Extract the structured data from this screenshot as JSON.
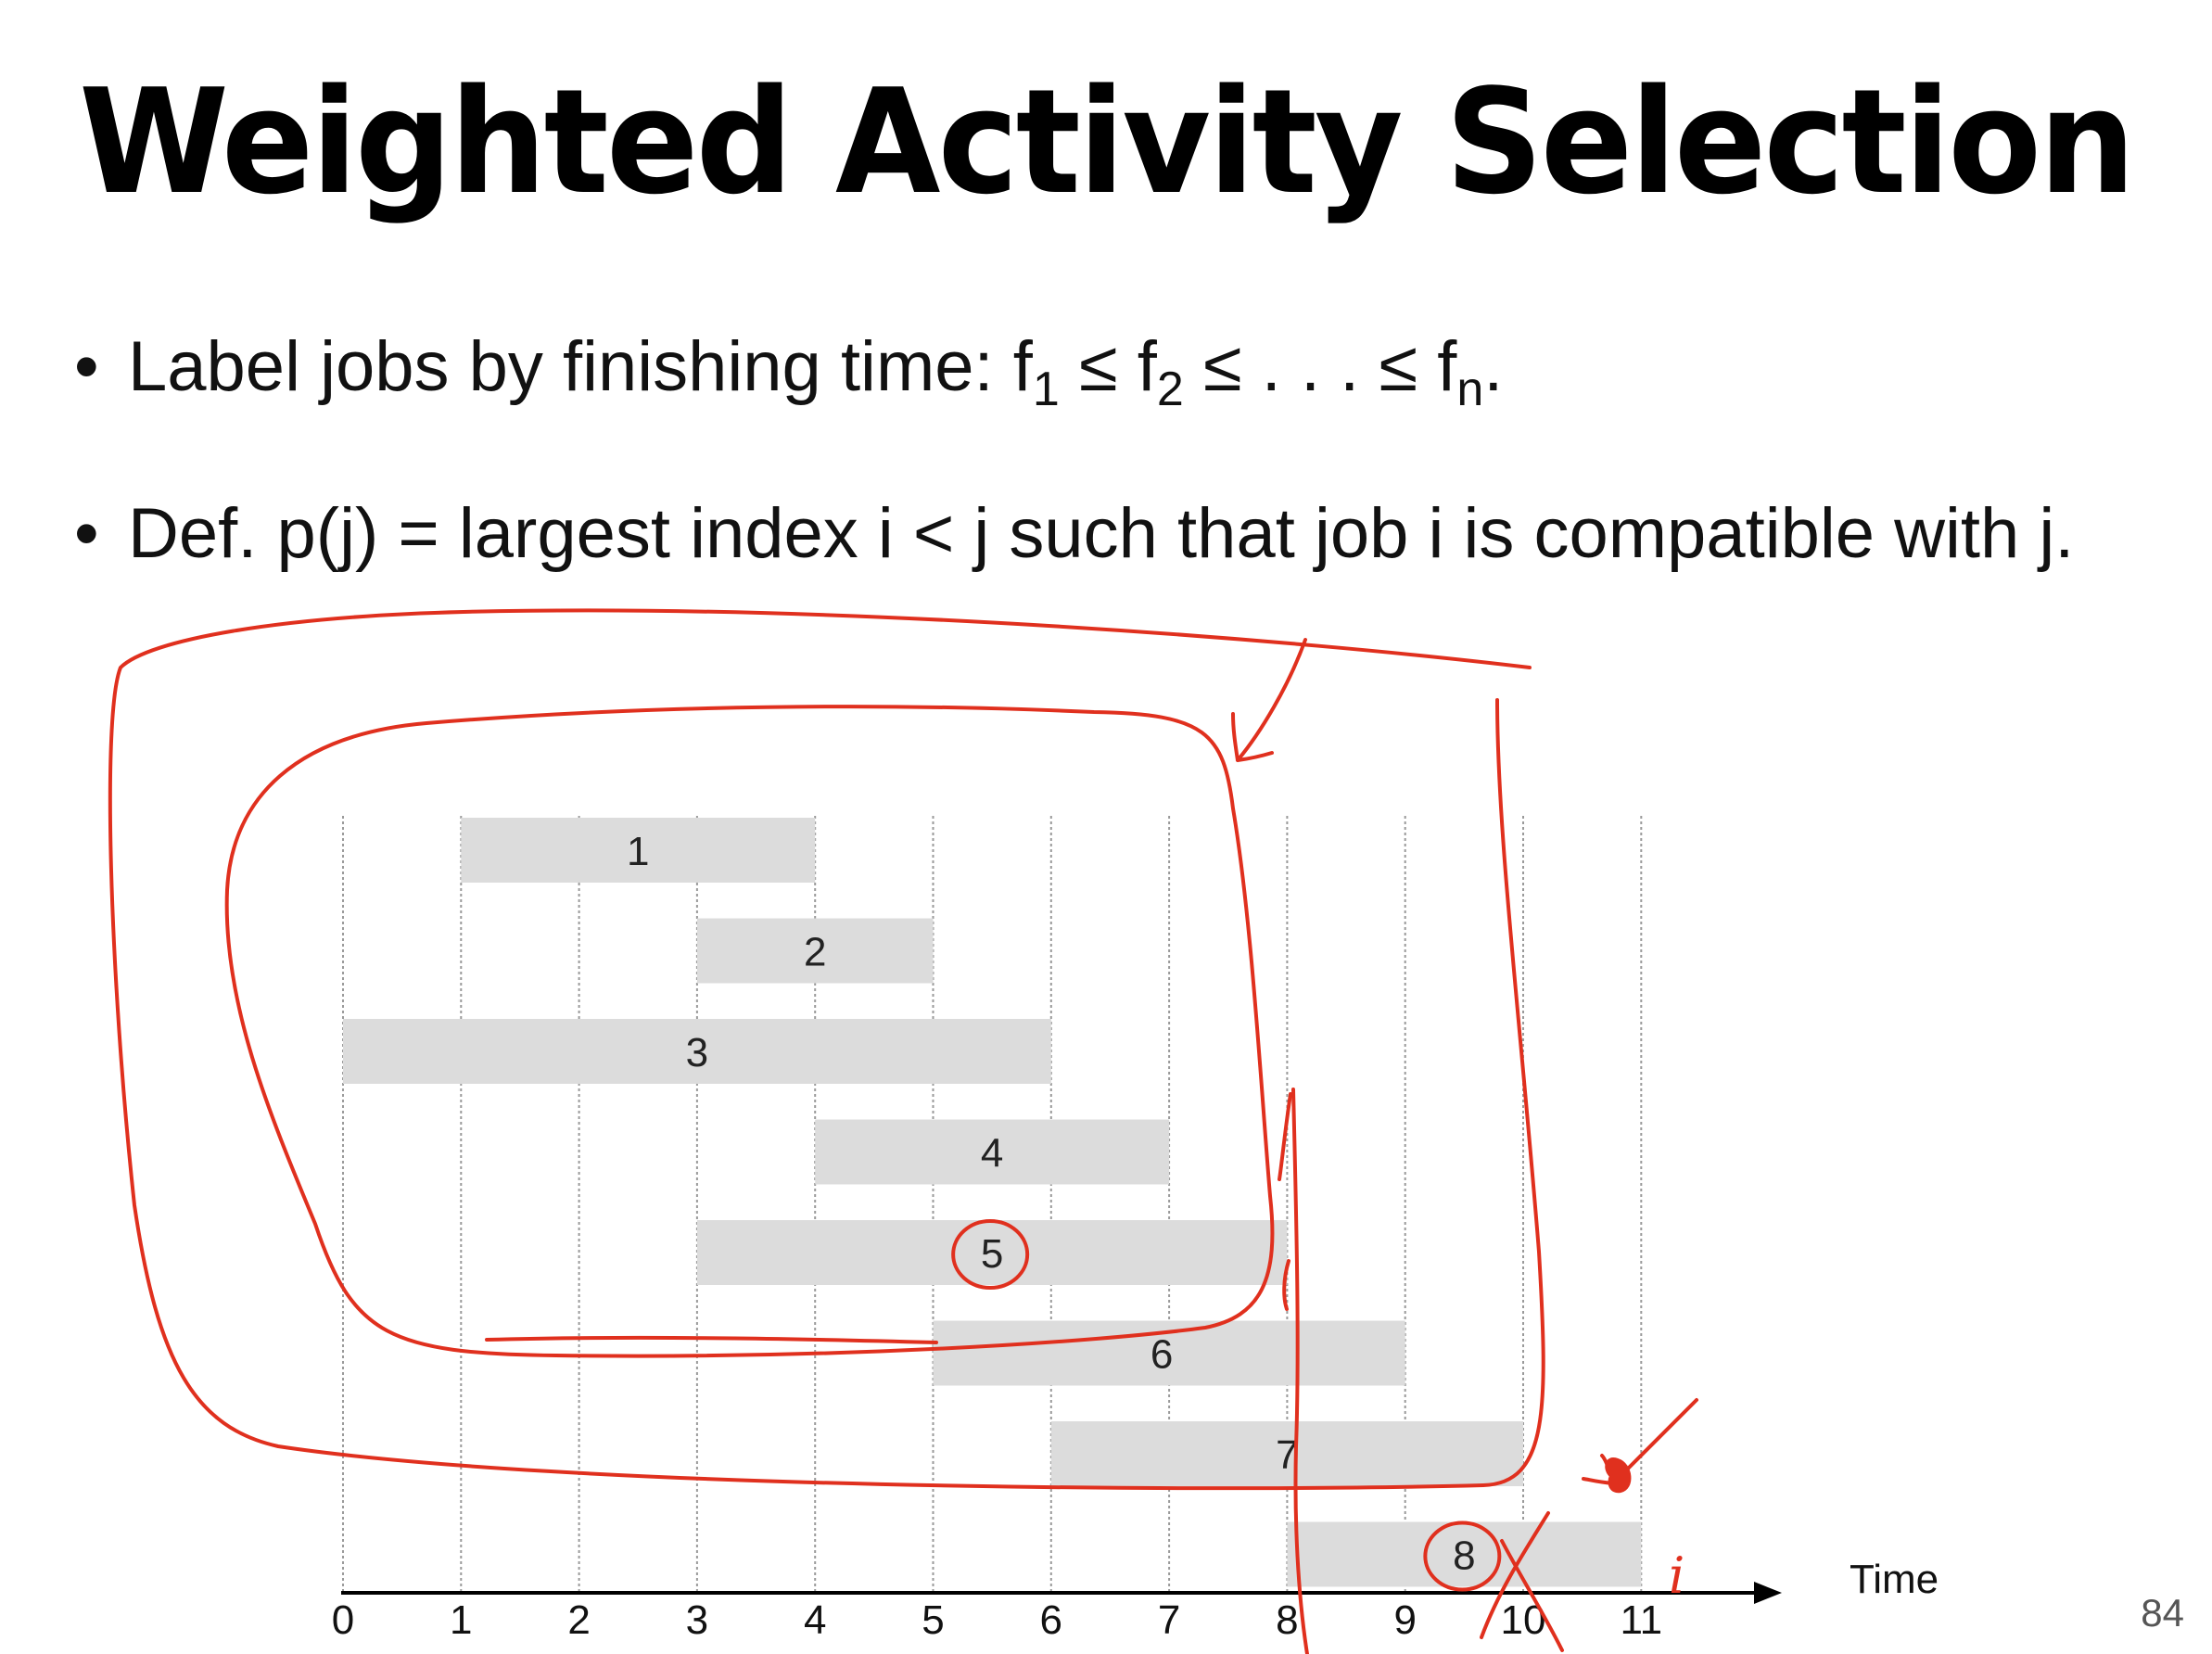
{
  "title": "Weighted Activity Selection",
  "bullets": {
    "b1": {
      "bullet": "•",
      "text": "Label jobs by finishing time:  f",
      "s1": "1",
      "le1": " ≤  f",
      "s2": "2",
      "le2": " ≤ . . . ≤ f",
      "sn": "n",
      "end": "."
    },
    "b2": {
      "bullet": "•",
      "text": "Def.  p(j) = largest index i < j such that job i is compatible with j."
    }
  },
  "chart_data": {
    "type": "gantt",
    "xlabel": "Time",
    "x_ticks": [
      "0",
      "1",
      "2",
      "3",
      "4",
      "5",
      "6",
      "7",
      "8",
      "9",
      "10",
      "11"
    ],
    "xlim": [
      0,
      11
    ],
    "grid": true,
    "jobs": [
      {
        "label": "1",
        "start": 1,
        "end": 4
      },
      {
        "label": "2",
        "start": 3,
        "end": 5
      },
      {
        "label": "3",
        "start": 0,
        "end": 6
      },
      {
        "label": "4",
        "start": 4,
        "end": 7
      },
      {
        "label": "5",
        "start": 3,
        "end": 8
      },
      {
        "label": "6",
        "start": 5,
        "end": 9
      },
      {
        "label": "7",
        "start": 6,
        "end": 10
      },
      {
        "label": "8",
        "start": 8,
        "end": 11
      }
    ]
  },
  "annotations": {
    "circled_jobs": [
      "5",
      "8"
    ],
    "handwritten_label": "i",
    "ink_color": "#e0301e"
  },
  "colors": {
    "bar": "#dcdcdc",
    "grid": "#9a9a9a",
    "axis": "#000000"
  },
  "page_number": "84"
}
